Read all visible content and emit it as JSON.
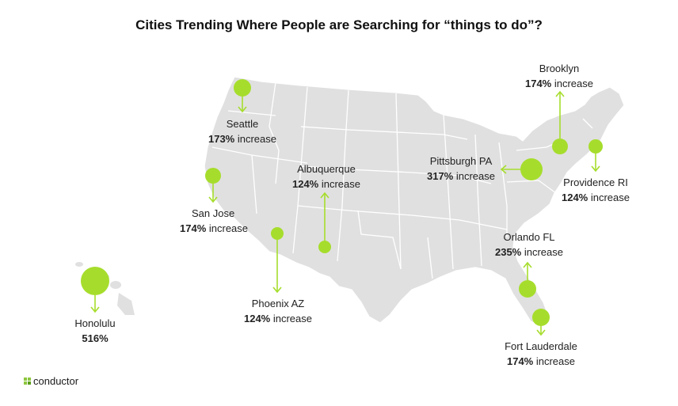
{
  "title": "Cities Trending Where People are Searching for “things to do”?",
  "accent_color": "#a6dd2c",
  "map_color": "#e0e0e0",
  "border_color": "#ffffff",
  "brand": {
    "name": "conductor",
    "icon": "conductor-logo-icon"
  },
  "cities": [
    {
      "id": "seattle",
      "name": "Seattle",
      "increase_value": "173%",
      "increase_word": "increase"
    },
    {
      "id": "san-jose",
      "name": "San Jose",
      "increase_value": "174%",
      "increase_word": "increase"
    },
    {
      "id": "albuquerque",
      "name": "Albuquerque",
      "increase_value": "124%",
      "increase_word": "increase"
    },
    {
      "id": "phoenix",
      "name": "Phoenix AZ",
      "increase_value": "124%",
      "increase_word": "increase"
    },
    {
      "id": "honolulu",
      "name": "Honolulu",
      "increase_value": "516%",
      "increase_word": ""
    },
    {
      "id": "pittsburgh",
      "name": "Pittsburgh PA",
      "increase_value": "317%",
      "increase_word": "increase"
    },
    {
      "id": "brooklyn",
      "name": "Brooklyn",
      "increase_value": "174%",
      "increase_word": "increase"
    },
    {
      "id": "providence",
      "name": "Providence RI",
      "increase_value": "124%",
      "increase_word": "increase"
    },
    {
      "id": "orlando",
      "name": "Orlando FL",
      "increase_value": "235%",
      "increase_word": "increase"
    },
    {
      "id": "fort-lauderdale",
      "name": "Fort Lauderdale",
      "increase_value": "174%",
      "increase_word": "increase"
    }
  ]
}
